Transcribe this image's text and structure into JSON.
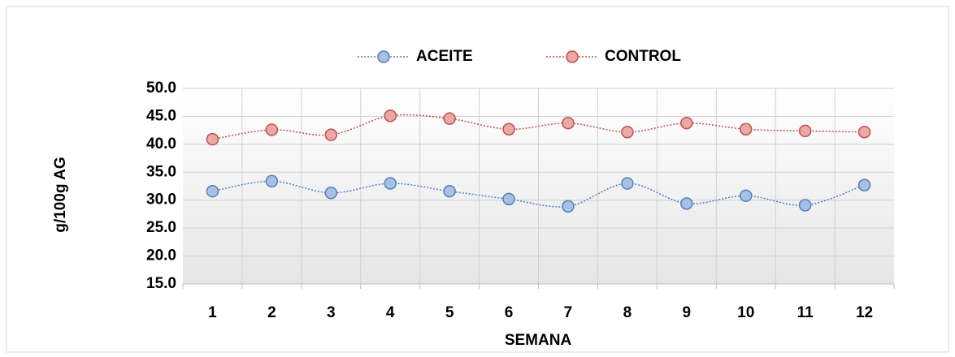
{
  "chart_data": {
    "type": "line",
    "x_label": "SEMANA",
    "y_label": "g/100g AG",
    "categories": [
      "1",
      "2",
      "3",
      "4",
      "5",
      "6",
      "7",
      "8",
      "9",
      "10",
      "11",
      "12"
    ],
    "series": [
      {
        "name": "ACEITE",
        "color": "#4f81bd",
        "marker_fill": "#a9c0e4",
        "values": [
          31.6,
          33.4,
          31.3,
          33.0,
          31.6,
          30.2,
          28.9,
          33.0,
          29.4,
          30.8,
          29.1,
          32.7
        ]
      },
      {
        "name": "CONTROL",
        "color": "#c0504d",
        "marker_fill": "#e8a9a7",
        "values": [
          40.9,
          42.6,
          41.7,
          45.1,
          44.6,
          42.7,
          43.8,
          42.2,
          43.8,
          42.7,
          42.4,
          42.2
        ]
      }
    ],
    "ylim": [
      15,
      50
    ],
    "yticks": [
      {
        "value": 15,
        "label": "15.0"
      },
      {
        "value": 20,
        "label": "20.0"
      },
      {
        "value": 25,
        "label": "25.0"
      },
      {
        "value": 30,
        "label": "30.0"
      },
      {
        "value": 35,
        "label": "35.0"
      },
      {
        "value": 40,
        "label": "40.0"
      },
      {
        "value": 45,
        "label": "45.0"
      },
      {
        "value": 50,
        "label": "50.0"
      }
    ],
    "grid": true,
    "legend": "top",
    "smooth": true
  }
}
